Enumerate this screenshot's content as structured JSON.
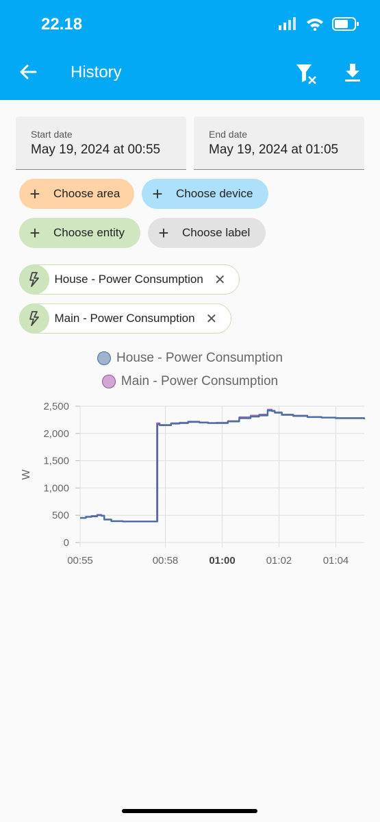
{
  "status": {
    "time": "22.18"
  },
  "toolbar": {
    "title": "History",
    "icons": [
      "back-arrow-icon",
      "filter-remove-icon",
      "download-icon"
    ]
  },
  "dates": {
    "start": {
      "label": "Start date",
      "value": "May 19, 2024 at 00:55"
    },
    "end": {
      "label": "End date",
      "value": "May 19, 2024 at 01:05"
    }
  },
  "chips": {
    "area": "Choose area",
    "device": "Choose device",
    "entity": "Choose entity",
    "label": "Choose label"
  },
  "entities": [
    {
      "name": "House - Power Consumption"
    },
    {
      "name": "Main - Power Consumption"
    }
  ],
  "colors": {
    "accent": "#03a9f4",
    "house_series": "#4a6fa5",
    "main_series": "#b06ab3"
  },
  "chart_data": {
    "type": "line",
    "ylabel": "W",
    "ylim": [
      0,
      2500
    ],
    "yticks": [
      "0",
      "500",
      "1,000",
      "1,500",
      "2,000",
      "2,500"
    ],
    "xticks": [
      {
        "label": "00:55",
        "min": 0,
        "bold": false
      },
      {
        "label": "00:58",
        "min": 3,
        "bold": false
      },
      {
        "label": "01:00",
        "min": 5,
        "bold": true
      },
      {
        "label": "01:02",
        "min": 7,
        "bold": false
      },
      {
        "label": "01:04",
        "min": 9,
        "bold": false
      }
    ],
    "series": [
      {
        "name": "House - Power Consumption",
        "x": [
          0,
          0.2,
          0.4,
          0.6,
          0.75,
          0.85,
          1.1,
          1.5,
          2.0,
          2.5,
          2.7,
          2.72,
          2.8,
          3.2,
          3.5,
          3.8,
          4.2,
          4.5,
          4.8,
          5.2,
          5.6,
          6.0,
          6.3,
          6.6,
          6.75,
          6.85,
          7.1,
          7.5,
          8.0,
          8.5,
          9.0,
          9.5,
          10.0
        ],
        "values": [
          450,
          470,
          480,
          500,
          490,
          420,
          390,
          385,
          385,
          385,
          385,
          2170,
          2150,
          2180,
          2190,
          2210,
          2200,
          2190,
          2190,
          2220,
          2280,
          2310,
          2330,
          2420,
          2410,
          2380,
          2340,
          2320,
          2300,
          2290,
          2280,
          2280,
          2260
        ]
      },
      {
        "name": "Main - Power Consumption",
        "x": [
          0,
          0.2,
          0.4,
          0.6,
          0.75,
          0.85,
          1.1,
          1.5,
          2.0,
          2.5,
          2.68,
          2.7,
          2.8,
          3.2,
          3.5,
          3.8,
          4.2,
          4.5,
          4.8,
          5.2,
          5.6,
          6.0,
          6.3,
          6.6,
          6.75,
          6.85,
          7.1,
          7.5,
          8.0,
          8.5,
          9.0,
          9.5,
          10.0
        ],
        "values": [
          455,
          475,
          490,
          510,
          495,
          425,
          395,
          390,
          390,
          390,
          390,
          2190,
          2160,
          2190,
          2200,
          2220,
          2205,
          2195,
          2200,
          2230,
          2300,
          2330,
          2350,
          2440,
          2420,
          2390,
          2350,
          2330,
          2305,
          2295,
          2285,
          2285,
          2265
        ]
      }
    ]
  }
}
